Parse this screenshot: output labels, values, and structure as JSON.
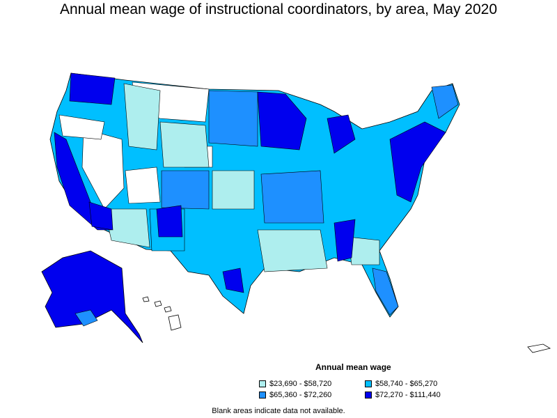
{
  "title": "Annual mean wage of instructional coordinators, by area, May 2020",
  "legend": {
    "title": "Annual mean wage",
    "items": [
      {
        "label": "$23,690 - $58,720",
        "color": "#aeeeee"
      },
      {
        "label": "$58,740 - $65,270",
        "color": "#00bfff"
      },
      {
        "label": "$65,360 - $72,260",
        "color": "#1e90ff"
      },
      {
        "label": "$72,270 - $111,440",
        "color": "#0000ee"
      }
    ]
  },
  "note": "Blank areas indicate data not available.",
  "colors": {
    "outline": "#000000",
    "no_data": "#ffffff",
    "tier1": "#aeeeee",
    "tier2": "#00bfff",
    "tier3": "#1e90ff",
    "tier4": "#0000ee"
  }
}
